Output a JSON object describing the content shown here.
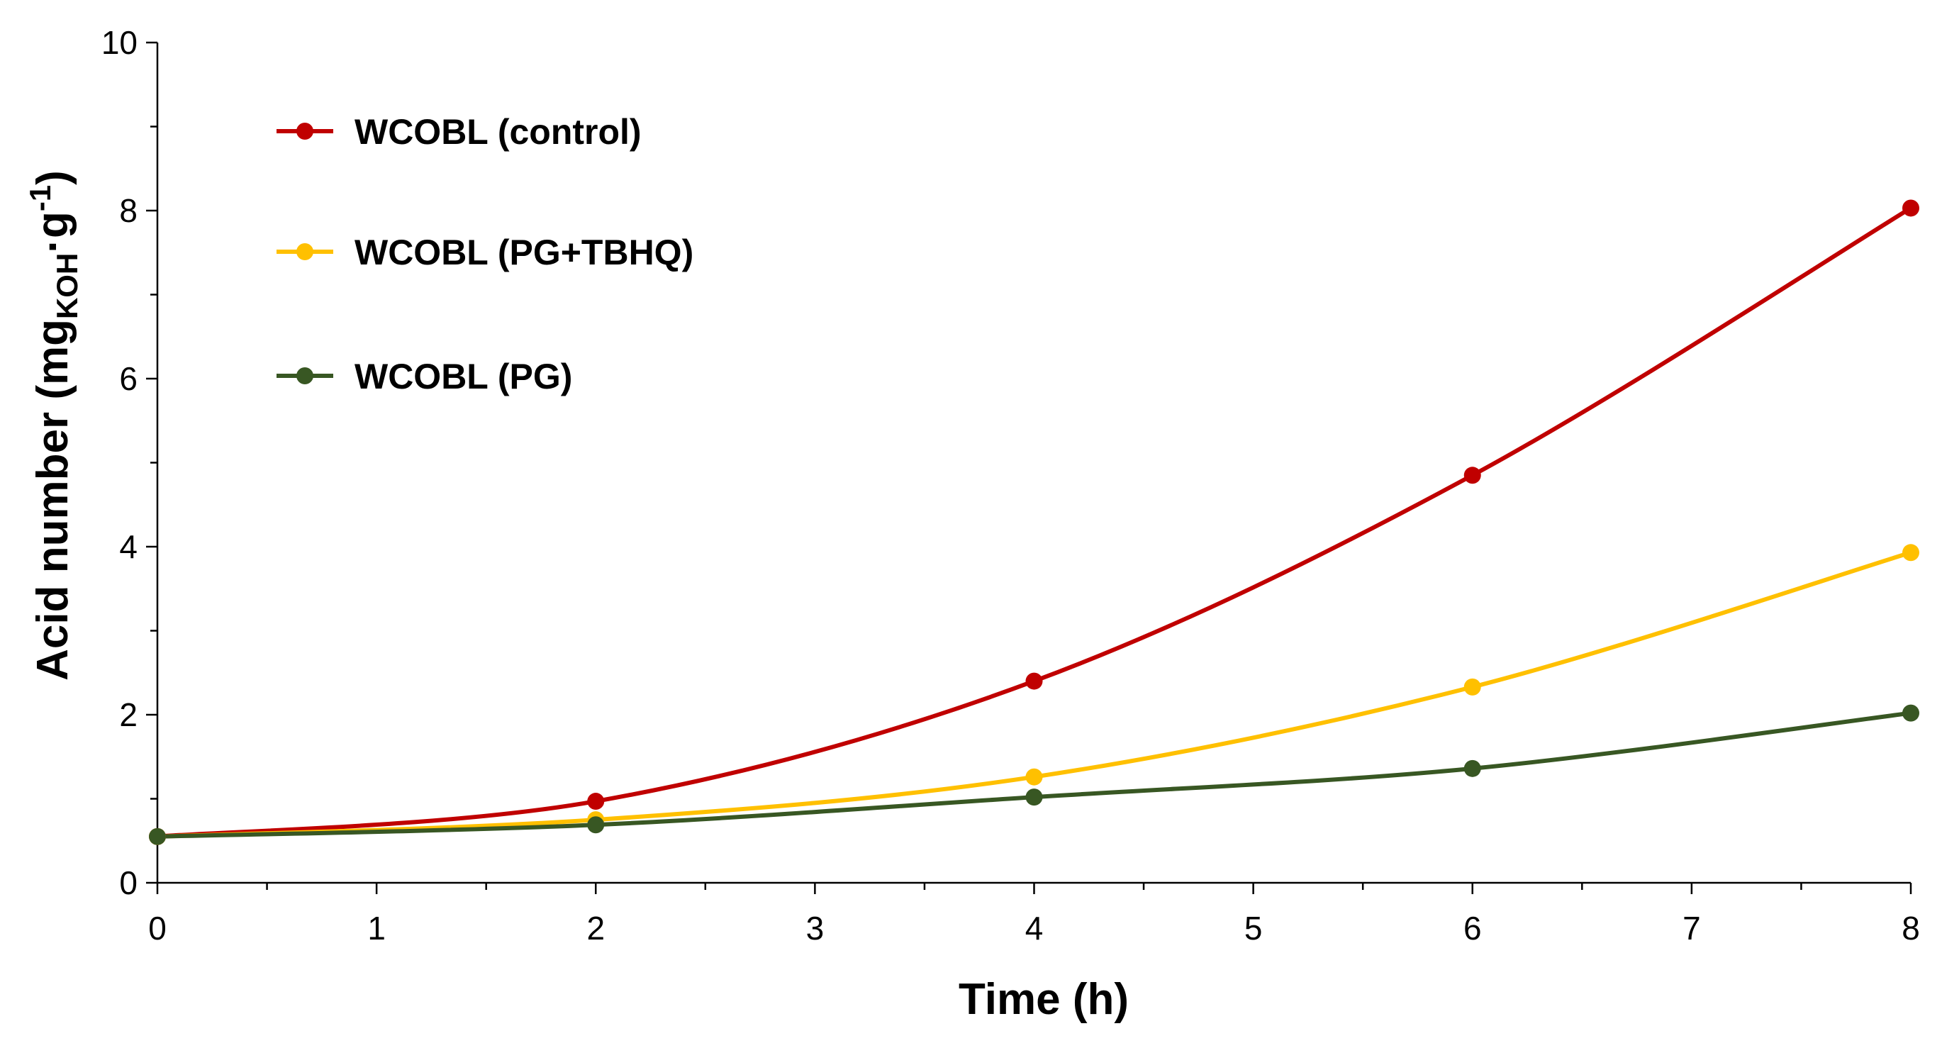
{
  "chart_data": {
    "type": "line",
    "title": "",
    "xlabel": "Time (h)",
    "ylabel": {
      "main": "Acid number (mg",
      "sub": "KOH",
      "mid": "·g",
      "sup": "-1",
      "end": ")"
    },
    "xlim": [
      0,
      8
    ],
    "ylim": [
      0,
      10
    ],
    "x_ticks": [
      "0",
      "1",
      "2",
      "3",
      "4",
      "5",
      "6",
      "7",
      "8"
    ],
    "y_ticks": [
      "0",
      "2",
      "4",
      "6",
      "8",
      "10"
    ],
    "grid": false,
    "smooth": true,
    "legend_position": "top-left",
    "series": [
      {
        "name": "WCOBL (control)",
        "color": "#c00000",
        "x": [
          0,
          2,
          4,
          6,
          8
        ],
        "values": [
          0.55,
          0.97,
          2.4,
          4.85,
          8.03
        ]
      },
      {
        "name": "WCOBL (PG+TBHQ)",
        "color": "#ffc000",
        "x": [
          0,
          2,
          4,
          6,
          8
        ],
        "values": [
          0.55,
          0.75,
          1.26,
          2.33,
          3.93
        ]
      },
      {
        "name": "WCOBL (PG)",
        "color": "#385723",
        "x": [
          0,
          2,
          4,
          6,
          8
        ],
        "values": [
          0.55,
          0.69,
          1.02,
          1.36,
          2.02
        ]
      }
    ]
  }
}
